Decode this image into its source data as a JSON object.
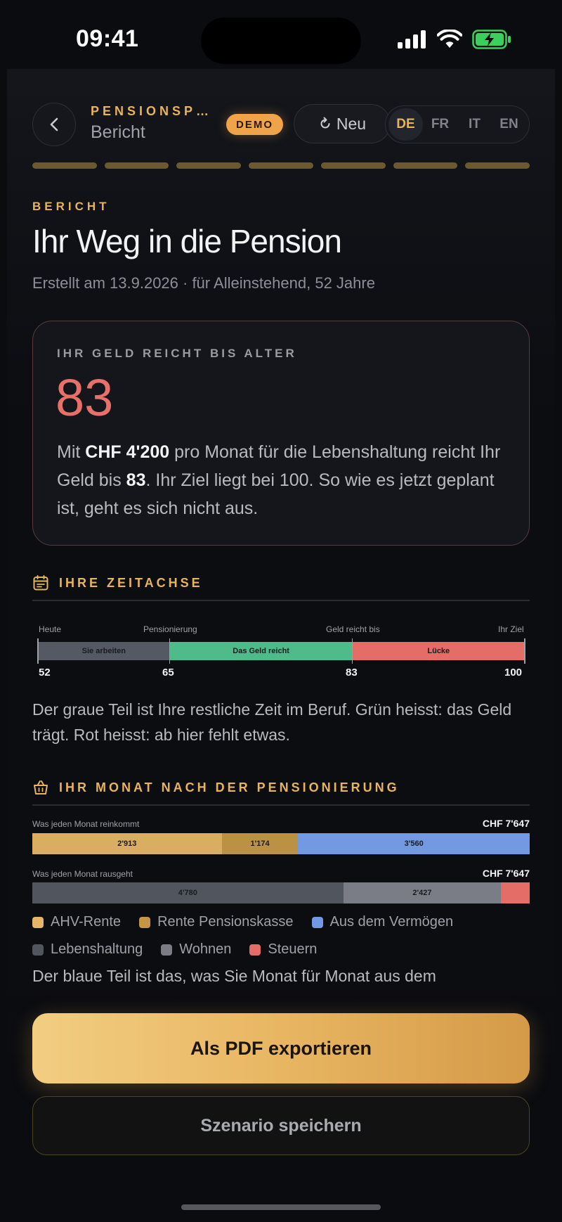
{
  "status_bar": {
    "time": "09:41"
  },
  "header": {
    "kicker": "PENSIONSP…",
    "title": "Bericht",
    "demo_badge": "DEMO",
    "new_label": "Neu",
    "languages": [
      "DE",
      "FR",
      "IT",
      "EN"
    ],
    "active_language": "DE"
  },
  "progress": {
    "segments_total": 7,
    "segments_done": 7
  },
  "report": {
    "eyebrow": "BERICHT",
    "title": "Ihr Weg in die Pension",
    "subtitle": "Erstellt am 13.9.2026 · für Alleinstehend, 52 Jahre"
  },
  "hero": {
    "label": "IHR GELD REICHT BIS ALTER",
    "value": "83",
    "text_parts": {
      "p1": "Mit ",
      "amount": "CHF 4'200",
      "p2": " pro Monat für die Lebenshaltung reicht Ihr Geld bis ",
      "age": "83",
      "p3": ". Ihr Ziel liegt bei 100. So wie es jetzt geplant ist, geht es sich nicht aus."
    }
  },
  "timeline": {
    "section_title": "IHRE ZEITACHSE",
    "labels": {
      "today": "Heute",
      "retirement": "Pensionierung",
      "money_until": "Geld reicht bis",
      "goal": "Ihr Ziel"
    },
    "ages": {
      "today": 52,
      "retirement": 65,
      "money_until": 83,
      "goal": 100
    },
    "segments": [
      {
        "label": "Sie arbeiten",
        "from": 52,
        "to": 65,
        "color": "#555964"
      },
      {
        "label": "Das Geld reicht",
        "from": 65,
        "to": 83,
        "color": "#4fbb8a"
      },
      {
        "label": "Lücke",
        "from": 83,
        "to": 100,
        "color": "#e46d68"
      }
    ],
    "explanation": "Der graue Teil ist Ihre restliche Zeit im Beruf. Grün heisst: das Geld trägt. Rot heisst: ab hier fehlt etwas."
  },
  "monthly": {
    "section_title": "IHR MONAT NACH DER PENSIONIERUNG",
    "income": {
      "caption": "Was jeden Monat reinkommt",
      "total": "CHF 7'647",
      "segments": [
        {
          "label": "2'913",
          "value": 2913,
          "color": "#d9ad62"
        },
        {
          "label": "1'174",
          "value": 1174,
          "color": "#bb9144"
        },
        {
          "label": "3'560",
          "value": 3560,
          "color": "#7499e3"
        }
      ]
    },
    "expenses": {
      "caption": "Was jeden Monat rausgeht",
      "total": "CHF 7'647",
      "segments": [
        {
          "label": "4'780",
          "value": 4780,
          "color": "#51555d"
        },
        {
          "label": "2'427",
          "value": 2427,
          "color": "#7a7d85"
        },
        {
          "label": "",
          "value": 440,
          "color": "#e46d68"
        }
      ]
    },
    "legend": [
      {
        "label": "AHV-Rente",
        "color": "#e6b565"
      },
      {
        "label": "Rente Pensionskasse",
        "color": "#c49645"
      },
      {
        "label": "Aus dem Vermögen",
        "color": "#7499e3"
      },
      {
        "label": "Lebenshaltung",
        "color": "#51555d"
      },
      {
        "label": "Wohnen",
        "color": "#7a7d85"
      },
      {
        "label": "Steuern",
        "color": "#e46d68"
      }
    ],
    "explanation": "Der blaue Teil ist das, was Sie Monat für Monat aus dem"
  },
  "actions": {
    "export_pdf": "Als PDF exportieren",
    "save_scenario": "Szenario speichern"
  }
}
